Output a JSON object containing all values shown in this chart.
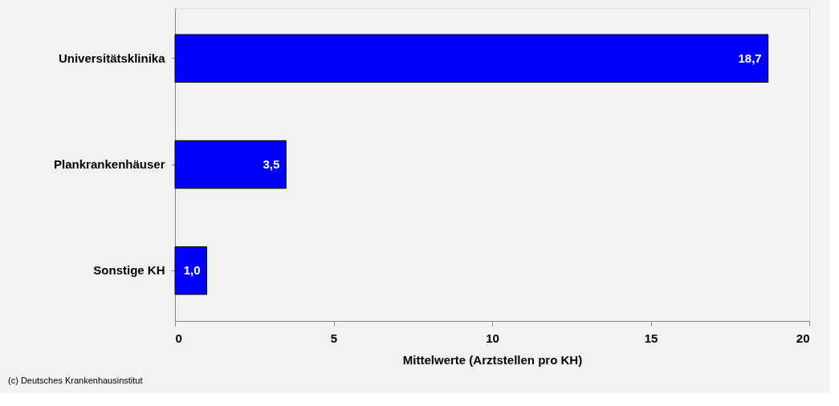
{
  "chart_data": {
    "type": "bar",
    "orientation": "horizontal",
    "categories": [
      "Universitätsklinika",
      "Plankrankenhäuser",
      "Sonstige KH"
    ],
    "values": [
      18.7,
      3.5,
      1.0
    ],
    "value_labels": [
      "18,7",
      "3,5",
      "1,0"
    ],
    "color": "#0000ff",
    "xlim": [
      0,
      20
    ],
    "xticks": [
      0,
      5,
      10,
      15,
      20
    ],
    "xlabel": "Mittelwerte (Arztstellen pro KH)",
    "annotations": [
      "(c) Deutsches Krankenhausinstitut"
    ],
    "grid": false
  }
}
